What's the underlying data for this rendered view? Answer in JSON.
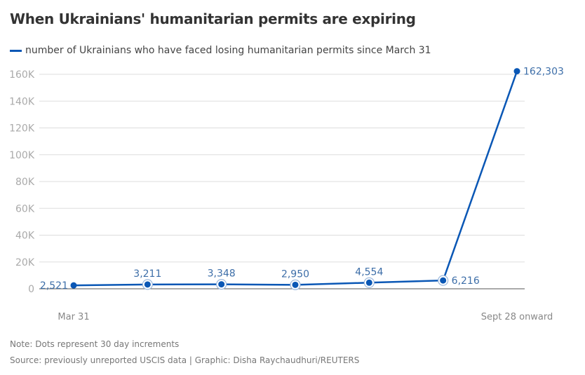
{
  "title": "When Ukrainians' humanitarian permits are expiring",
  "legend": {
    "label": "number of Ukrainians who have faced losing humanitarian permits since March 31",
    "color": "#0a57b5"
  },
  "notes": {
    "note": "Note: Dots represent 30 day increments",
    "source": "Source: previously unreported USCIS data | Graphic: Disha Raychaudhuri/REUTERS"
  },
  "chart_data": {
    "type": "line",
    "title": "When Ukrainians' humanitarian permits are expiring",
    "xlabel": "",
    "ylabel": "",
    "x": [
      "Mar 31",
      "",
      "",
      "",
      "",
      "",
      "Sept 28 onward"
    ],
    "x_tick_labels": [
      "Mar 31",
      "Sept 28 onward"
    ],
    "series": [
      {
        "name": "number of Ukrainians who have faced losing humanitarian permits since March 31",
        "values": [
          2521,
          3211,
          3348,
          2950,
          4554,
          6216,
          162303
        ],
        "labels": [
          "2,521",
          "3,211",
          "3,348",
          "2,950",
          "4,554",
          "6,216",
          "162,303"
        ],
        "color": "#0a57b5"
      }
    ],
    "ylim": [
      0,
      160000
    ],
    "y_ticks": [
      0,
      20000,
      40000,
      60000,
      80000,
      100000,
      120000,
      140000,
      160000
    ],
    "y_tick_labels": [
      "0",
      "20K",
      "40K",
      "60K",
      "80K",
      "100K",
      "120K",
      "140K",
      "160K"
    ],
    "grid": true,
    "legend_position": "top-left"
  }
}
